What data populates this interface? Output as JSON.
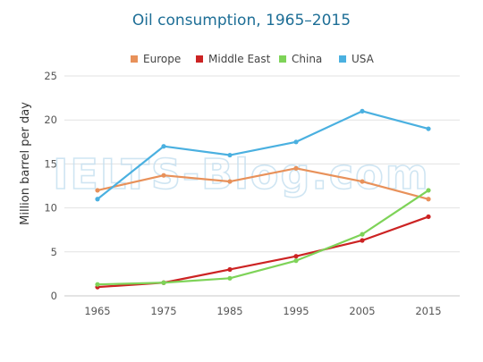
{
  "chart_data": {
    "type": "line",
    "title": "Oil consumption, 1965–2015",
    "ylabel": "Million barrel per day",
    "xlabel": "",
    "categories": [
      "1965",
      "1975",
      "1985",
      "1995",
      "2005",
      "2015"
    ],
    "yticks": [
      "0",
      "5",
      "10",
      "15",
      "20",
      "25"
    ],
    "ylim": [
      0,
      25
    ],
    "grid": true,
    "legend": "top",
    "series": [
      {
        "name": "Europe",
        "color": "#e8915a",
        "values": [
          12,
          13.7,
          13,
          14.5,
          13,
          11
        ]
      },
      {
        "name": "Middle East",
        "color": "#cc2323",
        "values": [
          1,
          1.5,
          3,
          4.5,
          6.3,
          9
        ]
      },
      {
        "name": "China",
        "color": "#7ed358",
        "values": [
          1.3,
          1.5,
          2,
          4,
          7,
          12
        ]
      },
      {
        "name": "USA",
        "color": "#4ab0e0",
        "values": [
          11,
          17,
          16,
          17.5,
          21,
          19
        ]
      }
    ]
  },
  "watermark": "IELTS-Blog.com"
}
